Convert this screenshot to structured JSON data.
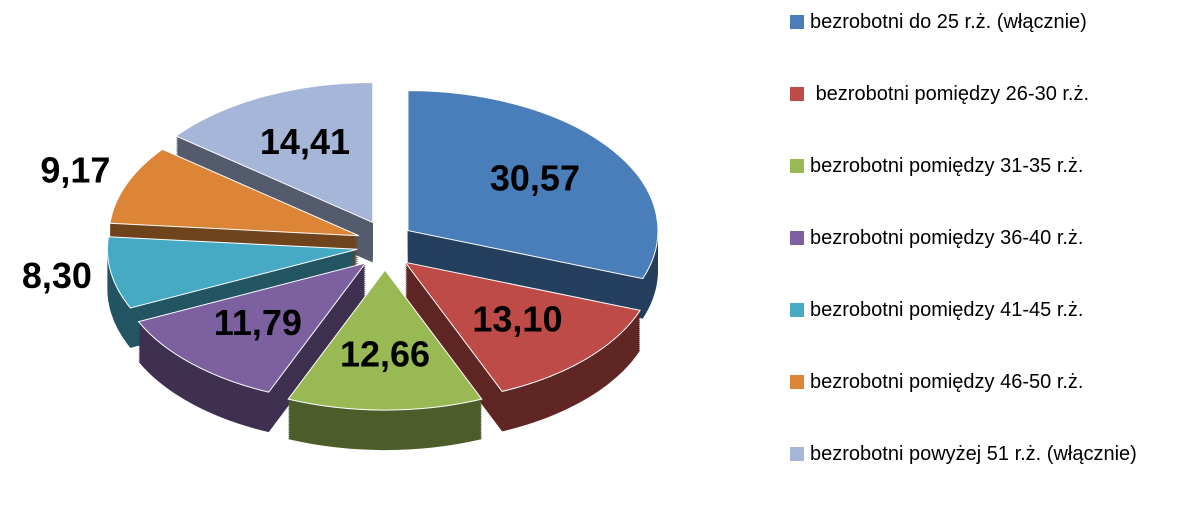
{
  "chart_data": {
    "type": "pie3d",
    "categories": [
      "bezrobotni do 25 r.ż. (włącznie)",
      " bezrobotni pomiędzy 26-30 r.ż.",
      "bezrobotni pomiędzy 31-35 r.ż.",
      "bezrobotni pomiędzy 36-40 r.ż.",
      "bezrobotni pomiędzy 41-45 r.ż.",
      "bezrobotni pomiędzy 46-50 r.ż.",
      "bezrobotni powyżej 51 r.ż. (włącznie)"
    ],
    "values": [
      30.57,
      13.1,
      12.66,
      11.79,
      8.3,
      9.17,
      14.41
    ],
    "value_labels": [
      "30,57",
      "13,10",
      "12,66",
      "11,79",
      "8,30",
      "9,17",
      "14,41"
    ],
    "colors": [
      "#4a7ebb",
      "#be4b48",
      "#98b954",
      "#7d60a0",
      "#46aac5",
      "#dd8537",
      "#a5b6d9"
    ],
    "legend": "right"
  }
}
